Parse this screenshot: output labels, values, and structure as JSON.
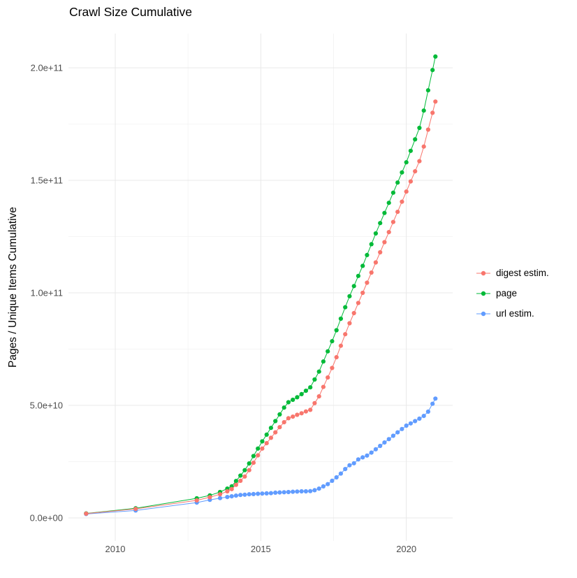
{
  "title": "Crawl Size Cumulative",
  "axes": {
    "y_title": "Pages / Unique Items Cumulative",
    "x_tick_labels": [
      "2010",
      "2015",
      "2020"
    ],
    "y_tick_labels": [
      "0.0e+00",
      "5.0e+10",
      "1.0e+11",
      "1.5e+11",
      "2.0e+11"
    ]
  },
  "legend": {
    "items": [
      {
        "label": "digest estim.",
        "color": "#F8766D"
      },
      {
        "label": "page",
        "color": "#00BA38"
      },
      {
        "label": "url estim.",
        "color": "#619CFF"
      }
    ]
  },
  "colors": {
    "grid_major": "#e8e8e8",
    "grid_minor": "#f2f2f2",
    "tick_text": "#4d4d4d",
    "background": "#ffffff"
  },
  "chart_data": {
    "type": "line",
    "title": "Crawl Size Cumulative",
    "xlabel": "",
    "ylabel": "Pages / Unique Items Cumulative",
    "x_unit": "year (decimal, crawl date)",
    "y_unit": "cumulative count of pages / unique items",
    "grid": true,
    "legend_position": "right",
    "marker": "circle",
    "line": true,
    "xlim": [
      2008.4,
      2021.6
    ],
    "ylim": [
      0,
      215000000000.0
    ],
    "x_ticks": [
      2010,
      2015,
      2020
    ],
    "y_ticks": [
      0,
      50000000000.0,
      100000000000.0,
      150000000000.0,
      200000000000.0
    ],
    "x": [
      2009.0,
      2010.7,
      2012.8,
      2013.25,
      2013.6,
      2013.85,
      2014.0,
      2014.15,
      2014.3,
      2014.45,
      2014.6,
      2014.75,
      2014.9,
      2015.05,
      2015.2,
      2015.35,
      2015.5,
      2015.65,
      2015.8,
      2015.95,
      2016.1,
      2016.25,
      2016.4,
      2016.55,
      2016.7,
      2016.85,
      2017.0,
      2017.15,
      2017.3,
      2017.45,
      2017.6,
      2017.75,
      2017.9,
      2018.05,
      2018.2,
      2018.35,
      2018.5,
      2018.65,
      2018.8,
      2018.95,
      2019.1,
      2019.25,
      2019.4,
      2019.55,
      2019.7,
      2019.85,
      2020.0,
      2020.15,
      2020.3,
      2020.45,
      2020.6,
      2020.75,
      2020.9,
      2021.0
    ],
    "series": [
      {
        "name": "digest estim.",
        "color": "#F8766D",
        "values": [
          1900000000.0,
          4000000000.0,
          7800000000.0,
          9200000000.0,
          10500000000.0,
          11800000000.0,
          12800000000.0,
          14700000000.0,
          16500000000.0,
          18400000000.0,
          21200000000.0,
          24500000000.0,
          27800000000.0,
          30800000000.0,
          33200000000.0,
          35600000000.0,
          38000000000.0,
          40300000000.0,
          42500000000.0,
          44300000000.0,
          45000000000.0,
          45800000000.0,
          46500000000.0,
          47300000000.0,
          48000000000.0,
          51000000000.0,
          54000000000.0,
          58200000000.0,
          62400000000.0,
          66600000000.0,
          71400000000.0,
          76500000000.0,
          81600000000.0,
          86500000000.0,
          91000000000.0,
          95500000000.0,
          100000000000.0,
          104500000000.0,
          109000000000.0,
          113500000000.0,
          118000000000.0,
          122500000000.0,
          127000000000.0,
          131500000000.0,
          136000000000.0,
          140500000000.0,
          145000000000.0,
          149500000000.0,
          154000000000.0,
          158500000000.0,
          165000000000.0,
          172500000000.0,
          180000000000.0,
          185000000000.0
        ]
      },
      {
        "name": "page",
        "color": "#00BA38",
        "values": [
          2000000000.0,
          4300000000.0,
          8700000000.0,
          10000000000.0,
          11500000000.0,
          13000000000.0,
          14000000000.0,
          16400000000.0,
          18800000000.0,
          21200000000.0,
          24200000000.0,
          27500000000.0,
          30800000000.0,
          34000000000.0,
          37000000000.0,
          40000000000.0,
          43000000000.0,
          46000000000.0,
          49000000000.0,
          51400000000.0,
          52500000000.0,
          53600000000.0,
          55000000000.0,
          56500000000.0,
          58000000000.0,
          61500000000.0,
          65000000000.0,
          69500000000.0,
          74000000000.0,
          78500000000.0,
          83400000000.0,
          88500000000.0,
          93600000000.0,
          98500000000.0,
          103000000000.0,
          107500000000.0,
          112000000000.0,
          116800000000.0,
          121600000000.0,
          126400000000.0,
          131000000000.0,
          135500000000.0,
          140000000000.0,
          144500000000.0,
          149000000000.0,
          153500000000.0,
          158000000000.0,
          163100000000.0,
          168200000000.0,
          173300000000.0,
          181000000000.0,
          190000000000.0,
          199000000000.0,
          205000000000.0
        ]
      },
      {
        "name": "url estim.",
        "color": "#619CFF",
        "values": [
          1750000000.0,
          3300000000.0,
          6800000000.0,
          8000000000.0,
          8800000000.0,
          9300000000.0,
          9600000000.0,
          9900000000.0,
          10200000000.0,
          10300000000.0,
          10500000000.0,
          10600000000.0,
          10700000000.0,
          10800000000.0,
          10900000000.0,
          11000000000.0,
          11200000000.0,
          11300000000.0,
          11400000000.0,
          11500000000.0,
          11600000000.0,
          11700000000.0,
          11800000000.0,
          11800000000.0,
          11900000000.0,
          12300000000.0,
          13000000000.0,
          14000000000.0,
          15000000000.0,
          16500000000.0,
          18000000000.0,
          19700000000.0,
          21700000000.0,
          23400000000.0,
          24300000000.0,
          26000000000.0,
          26900000000.0,
          27700000000.0,
          29000000000.0,
          30500000000.0,
          32000000000.0,
          33500000000.0,
          35000000000.0,
          36500000000.0,
          38000000000.0,
          39500000000.0,
          41000000000.0,
          42000000000.0,
          43000000000.0,
          44100000000.0,
          45300000000.0,
          47200000000.0,
          50700000000.0,
          53000000000.0
        ]
      }
    ]
  }
}
